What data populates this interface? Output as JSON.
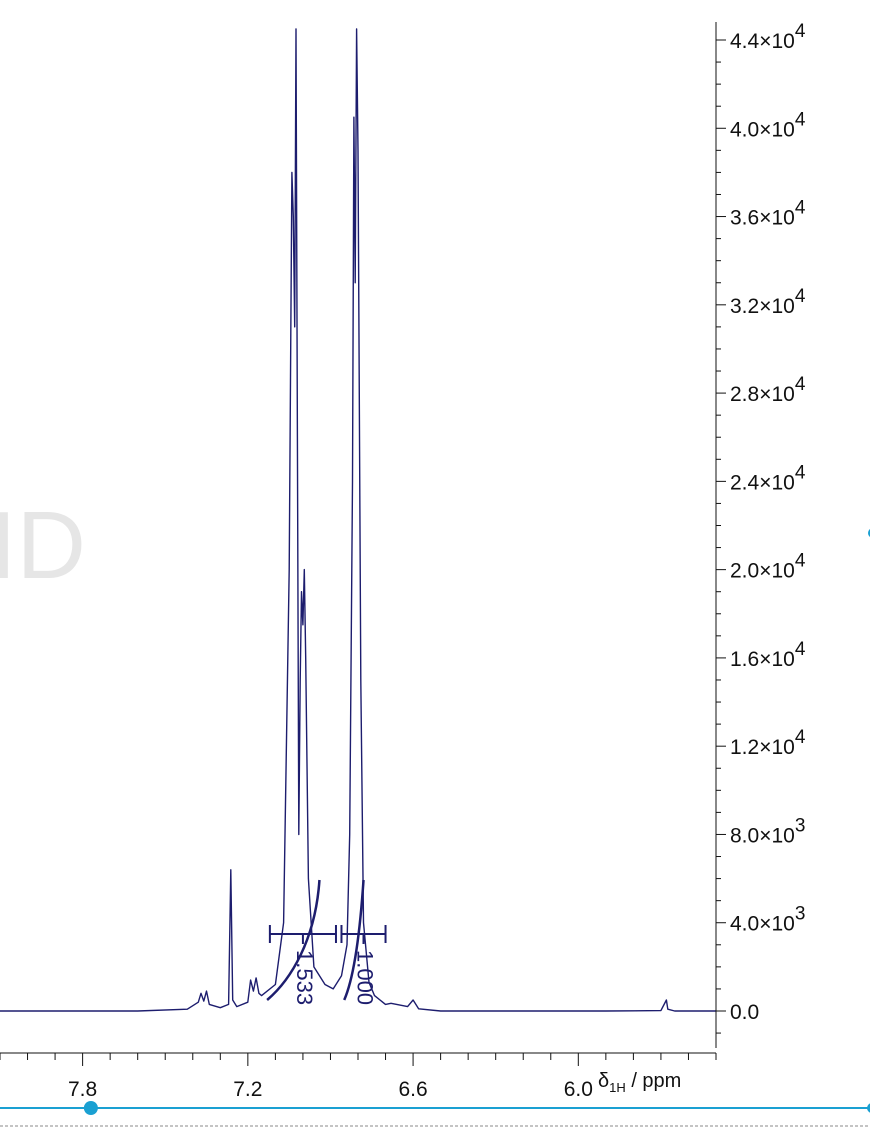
{
  "chart_data": {
    "type": "line",
    "title": "",
    "watermark": "ID",
    "xlabel": {
      "main": "δ",
      "sub": "1H",
      "unit": " / ppm"
    },
    "xlim": [
      8.1,
      5.5
    ],
    "x_ticks": [
      {
        "value": 7.8,
        "label": "7.8"
      },
      {
        "value": 7.2,
        "label": "7.2"
      },
      {
        "value": 6.6,
        "label": "6.6"
      },
      {
        "value": 6.0,
        "label": "6.0"
      }
    ],
    "ylim": [
      -3000,
      45000
    ],
    "y_ticks": [
      {
        "value": 0,
        "mantissa": "0.0",
        "exp": ""
      },
      {
        "value": 4000,
        "mantissa": "4.0×10",
        "exp": "3"
      },
      {
        "value": 8000,
        "mantissa": "8.0×10",
        "exp": "3"
      },
      {
        "value": 12000,
        "mantissa": "1.2×10",
        "exp": "4"
      },
      {
        "value": 16000,
        "mantissa": "1.6×10",
        "exp": "4"
      },
      {
        "value": 20000,
        "mantissa": "2.0×10",
        "exp": "4"
      },
      {
        "value": 24000,
        "mantissa": "2.4×10",
        "exp": "4"
      },
      {
        "value": 28000,
        "mantissa": "2.8×10",
        "exp": "4"
      },
      {
        "value": 32000,
        "mantissa": "3.2×10",
        "exp": "4"
      },
      {
        "value": 36000,
        "mantissa": "3.6×10",
        "exp": "4"
      },
      {
        "value": 40000,
        "mantissa": "4.0×10",
        "exp": "4"
      },
      {
        "value": 44000,
        "mantissa": "4.4×10",
        "exp": "4"
      }
    ],
    "series": [
      {
        "name": "1H spectrum",
        "color": "#1d1d6e",
        "points": [
          [
            8.1,
            0
          ],
          [
            7.6,
            0
          ],
          [
            7.42,
            80
          ],
          [
            7.38,
            400
          ],
          [
            7.37,
            800
          ],
          [
            7.36,
            450
          ],
          [
            7.35,
            900
          ],
          [
            7.34,
            300
          ],
          [
            7.3,
            150
          ],
          [
            7.27,
            300
          ],
          [
            7.262,
            6400
          ],
          [
            7.255,
            500
          ],
          [
            7.24,
            200
          ],
          [
            7.2,
            400
          ],
          [
            7.19,
            1400
          ],
          [
            7.18,
            900
          ],
          [
            7.17,
            1500
          ],
          [
            7.16,
            800
          ],
          [
            7.15,
            700
          ],
          [
            7.1,
            1200
          ],
          [
            7.07,
            4000
          ],
          [
            7.05,
            20000
          ],
          [
            7.04,
            38000
          ],
          [
            7.035,
            36000
          ],
          [
            7.03,
            31000
          ],
          [
            7.025,
            44500
          ],
          [
            7.02,
            26000
          ],
          [
            7.015,
            8000
          ],
          [
            7.01,
            15000
          ],
          [
            7.005,
            19000
          ],
          [
            7.0,
            17500
          ],
          [
            6.995,
            20000
          ],
          [
            6.99,
            16000
          ],
          [
            6.98,
            6000
          ],
          [
            6.96,
            2000
          ],
          [
            6.92,
            1200
          ],
          [
            6.89,
            1000
          ],
          [
            6.86,
            1600
          ],
          [
            6.84,
            3000
          ],
          [
            6.83,
            8000
          ],
          [
            6.82,
            24000
          ],
          [
            6.815,
            40500
          ],
          [
            6.81,
            33000
          ],
          [
            6.805,
            44500
          ],
          [
            6.8,
            39000
          ],
          [
            6.79,
            15000
          ],
          [
            6.78,
            4000
          ],
          [
            6.76,
            1300
          ],
          [
            6.74,
            700
          ],
          [
            6.7,
            300
          ],
          [
            6.68,
            350
          ],
          [
            6.62,
            200
          ],
          [
            6.6,
            500
          ],
          [
            6.58,
            100
          ],
          [
            6.5,
            0
          ],
          [
            5.9,
            0
          ],
          [
            5.7,
            20
          ],
          [
            5.68,
            500
          ],
          [
            5.675,
            80
          ],
          [
            5.65,
            0
          ],
          [
            5.5,
            0
          ]
        ]
      }
    ],
    "integrations": [
      {
        "label": "1.533",
        "from": 7.12,
        "to": 6.88,
        "curve_start": 7.13,
        "curve_end": 6.94
      },
      {
        "label": "1.000",
        "from": 6.86,
        "to": 6.7,
        "curve_start": 6.85,
        "curve_end": 6.78
      }
    ],
    "colors": {
      "spectrum": "#1d1d6e",
      "accent": "#1aa0d2",
      "axis": "#111111"
    },
    "cursor_value": 7.77
  }
}
